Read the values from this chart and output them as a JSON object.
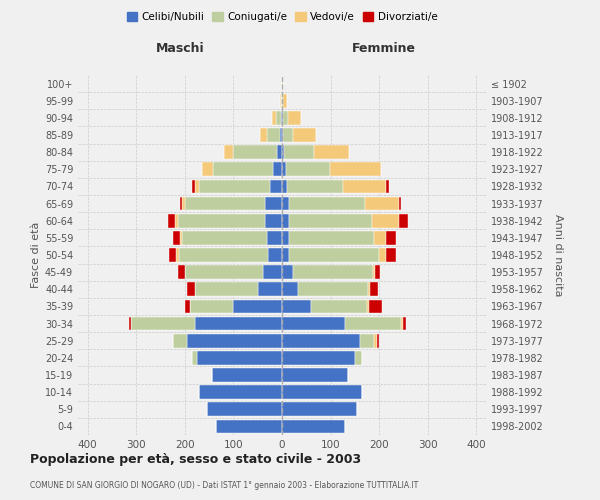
{
  "age_groups": [
    "0-4",
    "5-9",
    "10-14",
    "15-19",
    "20-24",
    "25-29",
    "30-34",
    "35-39",
    "40-44",
    "45-49",
    "50-54",
    "55-59",
    "60-64",
    "65-69",
    "70-74",
    "75-79",
    "80-84",
    "85-89",
    "90-94",
    "95-99",
    "100+"
  ],
  "birth_years": [
    "1998-2002",
    "1993-1997",
    "1988-1992",
    "1983-1987",
    "1978-1982",
    "1973-1977",
    "1968-1972",
    "1963-1967",
    "1958-1962",
    "1953-1957",
    "1948-1952",
    "1943-1947",
    "1938-1942",
    "1933-1937",
    "1928-1932",
    "1923-1927",
    "1918-1922",
    "1913-1917",
    "1908-1912",
    "1903-1907",
    "≤ 1902"
  ],
  "males": {
    "celibe": [
      135,
      155,
      170,
      145,
      175,
      195,
      180,
      100,
      50,
      40,
      28,
      30,
      35,
      35,
      25,
      18,
      10,
      5,
      3,
      0,
      0
    ],
    "coniugato": [
      0,
      0,
      0,
      0,
      10,
      30,
      130,
      90,
      130,
      160,
      185,
      175,
      180,
      165,
      145,
      125,
      90,
      25,
      10,
      2,
      0
    ],
    "vedovo": [
      0,
      0,
      0,
      0,
      0,
      0,
      0,
      0,
      0,
      0,
      5,
      5,
      5,
      5,
      10,
      22,
      20,
      15,
      8,
      2,
      0
    ],
    "divorziato": [
      0,
      0,
      0,
      0,
      0,
      0,
      5,
      10,
      15,
      15,
      15,
      15,
      15,
      5,
      5,
      0,
      0,
      0,
      0,
      0,
      0
    ]
  },
  "females": {
    "nubile": [
      130,
      155,
      165,
      135,
      150,
      160,
      130,
      60,
      32,
      22,
      15,
      15,
      15,
      15,
      10,
      8,
      5,
      3,
      2,
      0,
      0
    ],
    "coniugata": [
      0,
      0,
      0,
      0,
      15,
      30,
      115,
      115,
      145,
      165,
      185,
      175,
      170,
      155,
      115,
      90,
      60,
      20,
      10,
      3,
      0
    ],
    "vedova": [
      0,
      0,
      0,
      0,
      0,
      5,
      5,
      5,
      5,
      5,
      15,
      25,
      55,
      70,
      90,
      105,
      72,
      48,
      28,
      8,
      2
    ],
    "divorziata": [
      0,
      0,
      0,
      0,
      0,
      5,
      5,
      25,
      15,
      10,
      20,
      20,
      20,
      5,
      5,
      0,
      0,
      0,
      0,
      0,
      0
    ]
  },
  "colors": {
    "celibe": "#4472C4",
    "coniugato": "#BFCE9E",
    "vedovo": "#F5C97A",
    "divorziato": "#CC0000"
  },
  "xlim": 420,
  "title": "Popolazione per età, sesso e stato civile - 2003",
  "subtitle": "COMUNE DI SAN GIORGIO DI NOGARO (UD) - Dati ISTAT 1° gennaio 2003 - Elaborazione TUTTITALIA.IT",
  "ylabel_left": "Fasce di età",
  "ylabel_right": "Anni di nascita",
  "xlabel_left": "Maschi",
  "xlabel_right": "Femmine",
  "legend_labels": [
    "Celibi/Nubili",
    "Coniugati/e",
    "Vedovi/e",
    "Divorziati/e"
  ],
  "background_color": "#f0f0f0"
}
